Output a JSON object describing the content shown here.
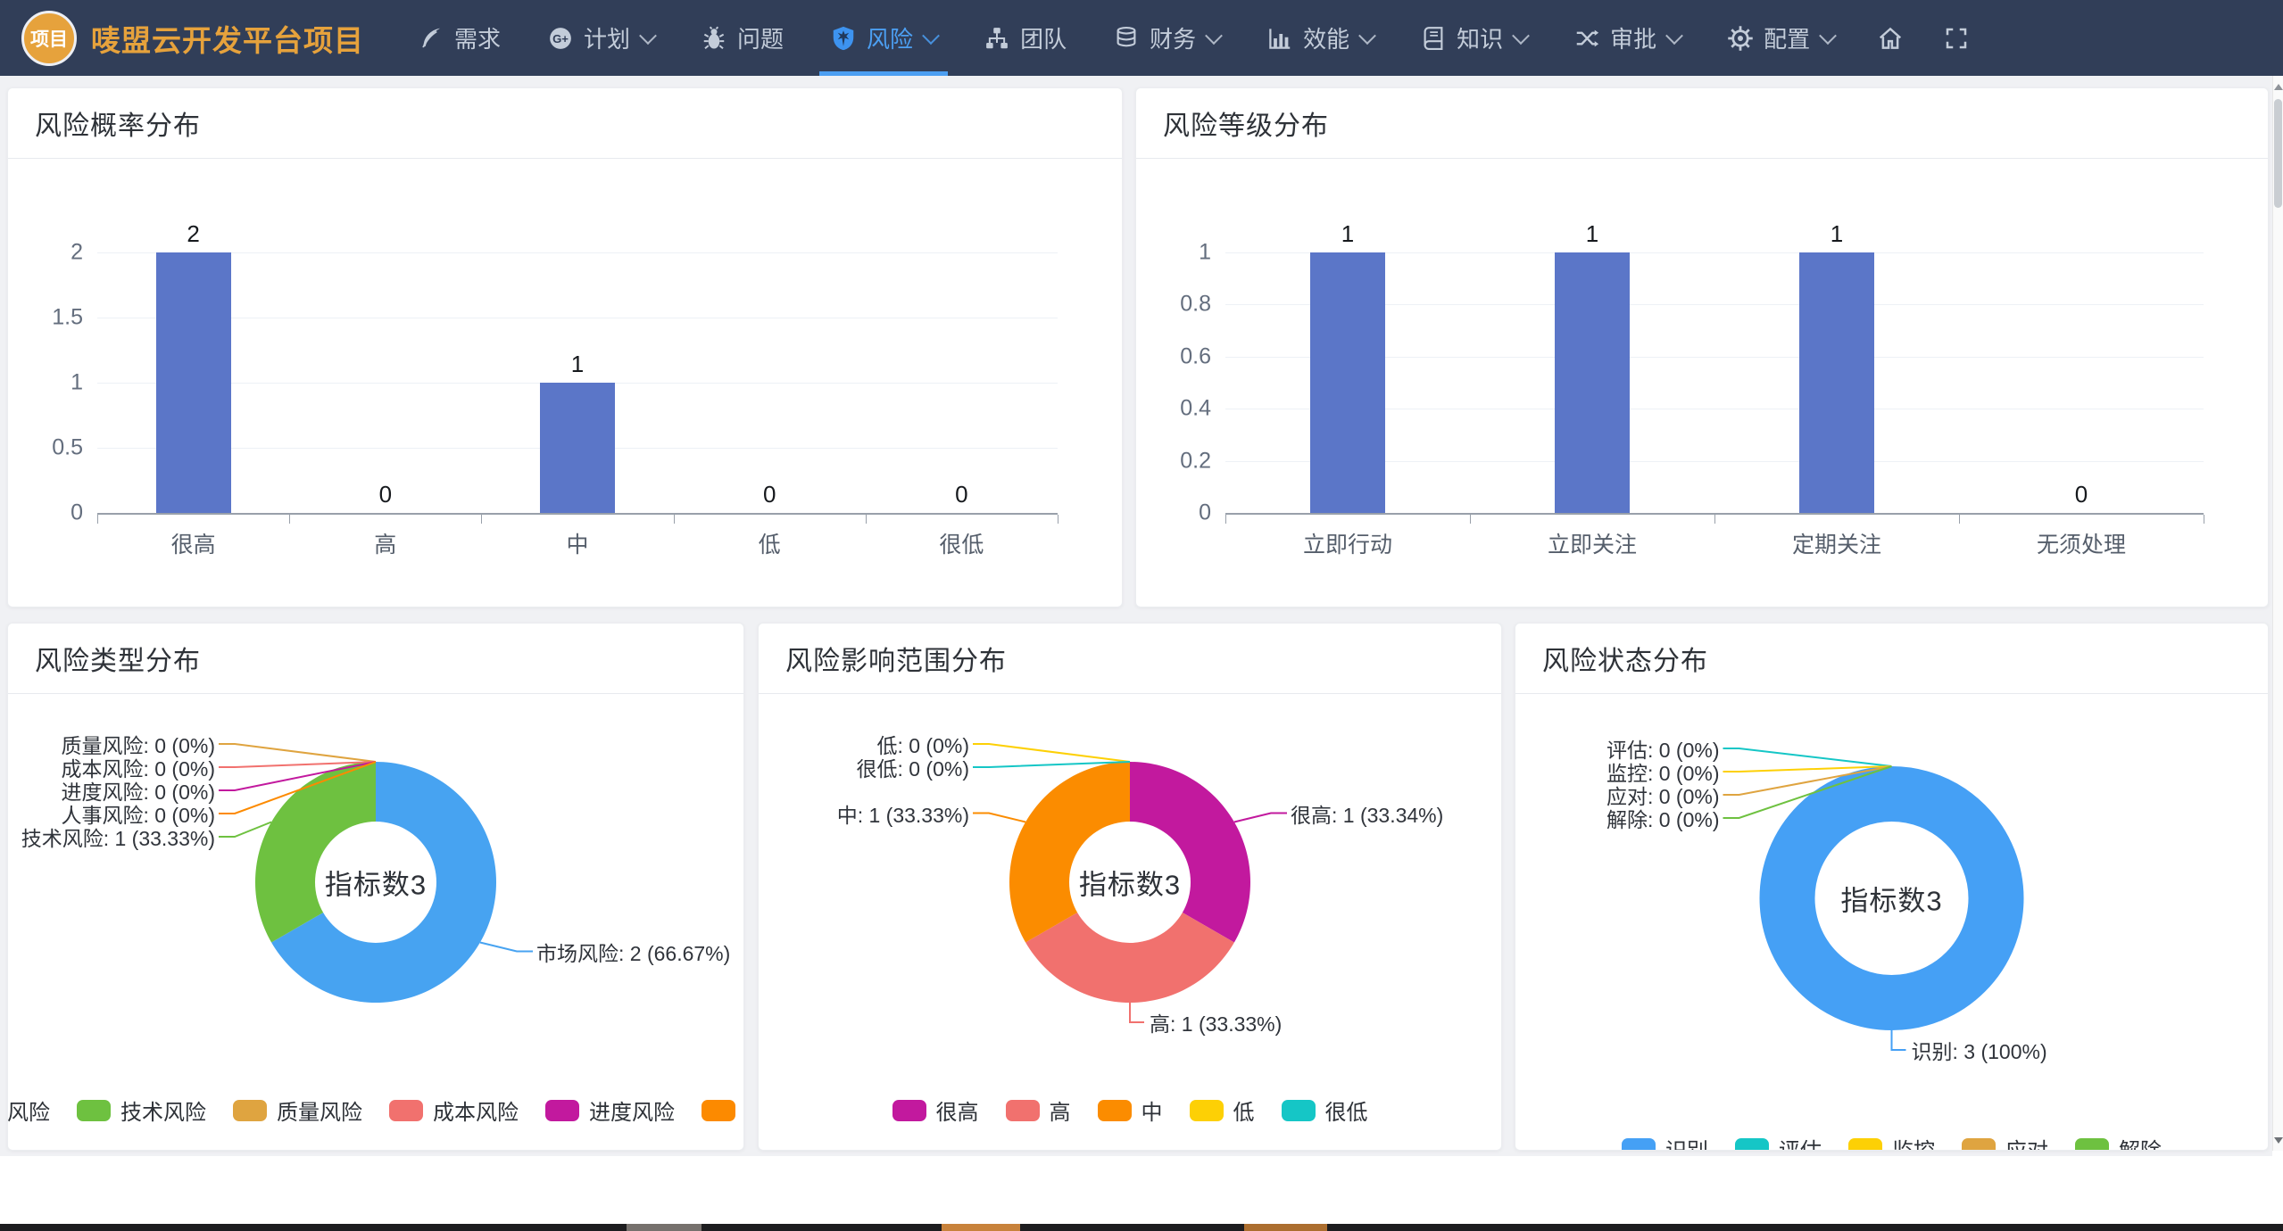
{
  "navbar": {
    "logo_text": "项目",
    "title": "唛盟云开发平台项目",
    "items": [
      {
        "label": "需求",
        "icon": "quill-icon",
        "chevron": false,
        "active": false
      },
      {
        "label": "计划",
        "icon": "gplus-icon",
        "chevron": true,
        "active": false
      },
      {
        "label": "问题",
        "icon": "bug-icon",
        "chevron": false,
        "active": false
      },
      {
        "label": "风险",
        "icon": "shield-icon",
        "chevron": true,
        "active": true
      },
      {
        "label": "团队",
        "icon": "org-chart-icon",
        "chevron": false,
        "active": false
      },
      {
        "label": "财务",
        "icon": "coins-icon",
        "chevron": true,
        "active": false
      },
      {
        "label": "效能",
        "icon": "bar-chart-icon",
        "chevron": true,
        "active": false
      },
      {
        "label": "知识",
        "icon": "book-icon",
        "chevron": true,
        "active": false
      },
      {
        "label": "审批",
        "icon": "shuffle-icon",
        "chevron": true,
        "active": false
      },
      {
        "label": "配置",
        "icon": "gear-icon",
        "chevron": true,
        "active": false
      }
    ]
  },
  "colors": {
    "navbar_bg": "#313E58",
    "accent_blue": "#4C9FF2",
    "brand_orange": "#E6A23C",
    "page_bg": "#F0F1F4",
    "bar_blue": "#5B76C8"
  },
  "chart_data": [
    {
      "type": "bar",
      "title": "风险概率分布",
      "categories": [
        "很高",
        "高",
        "中",
        "低",
        "很低"
      ],
      "values": [
        2,
        0,
        1,
        0,
        0
      ],
      "yticks": [
        "0",
        "0.5",
        "1",
        "1.5",
        "2"
      ],
      "ylim": [
        0,
        2
      ],
      "bar_color": "#5B76C8",
      "grid": true,
      "legend_position": "none"
    },
    {
      "type": "bar",
      "title": "风险等级分布",
      "categories": [
        "立即行动",
        "立即关注",
        "定期关注",
        "无须处理"
      ],
      "values": [
        1,
        1,
        1,
        0
      ],
      "yticks": [
        "0",
        "0.2",
        "0.4",
        "0.6",
        "0.8",
        "1"
      ],
      "ylim": [
        0,
        1
      ],
      "bar_color": "#5B76C8",
      "grid": true,
      "legend_position": "none"
    },
    {
      "type": "pie",
      "subtype": "donut",
      "title": "风险类型分布",
      "center_label": "指标数3",
      "legend_position": "bottom",
      "series": [
        {
          "name": "市场风险",
          "value": 2,
          "pct": "66.67%",
          "color": "#47A3F1"
        },
        {
          "name": "技术风险",
          "value": 1,
          "pct": "33.33%",
          "color": "#6EC140"
        },
        {
          "name": "质量风险",
          "value": 0,
          "pct": "0%",
          "color": "#DFA440"
        },
        {
          "name": "成本风险",
          "value": 0,
          "pct": "0%",
          "color": "#F1716E"
        },
        {
          "name": "进度风险",
          "value": 0,
          "pct": "0%",
          "color": "#C2199E"
        },
        {
          "name": "人事风险",
          "value": 0,
          "pct": "0%",
          "color": "#FC8A00"
        }
      ]
    },
    {
      "type": "pie",
      "subtype": "donut",
      "title": "风险影响范围分布",
      "center_label": "指标数3",
      "legend_position": "bottom",
      "series": [
        {
          "name": "很高",
          "value": 1,
          "pct": "33.34%",
          "color": "#C2199E"
        },
        {
          "name": "高",
          "value": 1,
          "pct": "33.33%",
          "color": "#F1716E"
        },
        {
          "name": "中",
          "value": 1,
          "pct": "33.33%",
          "color": "#FB8C00"
        },
        {
          "name": "低",
          "value": 0,
          "pct": "0%",
          "color": "#FDD005"
        },
        {
          "name": "很低",
          "value": 0,
          "pct": "0%",
          "color": "#15C6C6"
        }
      ]
    },
    {
      "type": "pie",
      "subtype": "donut",
      "title": "风险状态分布",
      "center_label": "指标数3",
      "legend_position": "bottom",
      "series": [
        {
          "name": "识别",
          "value": 3,
          "pct": "100%",
          "color": "#45A0F5"
        },
        {
          "name": "评估",
          "value": 0,
          "pct": "0%",
          "color": "#15C6C6"
        },
        {
          "name": "监控",
          "value": 0,
          "pct": "0%",
          "color": "#FDD005"
        },
        {
          "name": "应对",
          "value": 0,
          "pct": "0%",
          "color": "#DFA440"
        },
        {
          "name": "解除",
          "value": 0,
          "pct": "0%",
          "color": "#6EC140"
        }
      ]
    }
  ]
}
